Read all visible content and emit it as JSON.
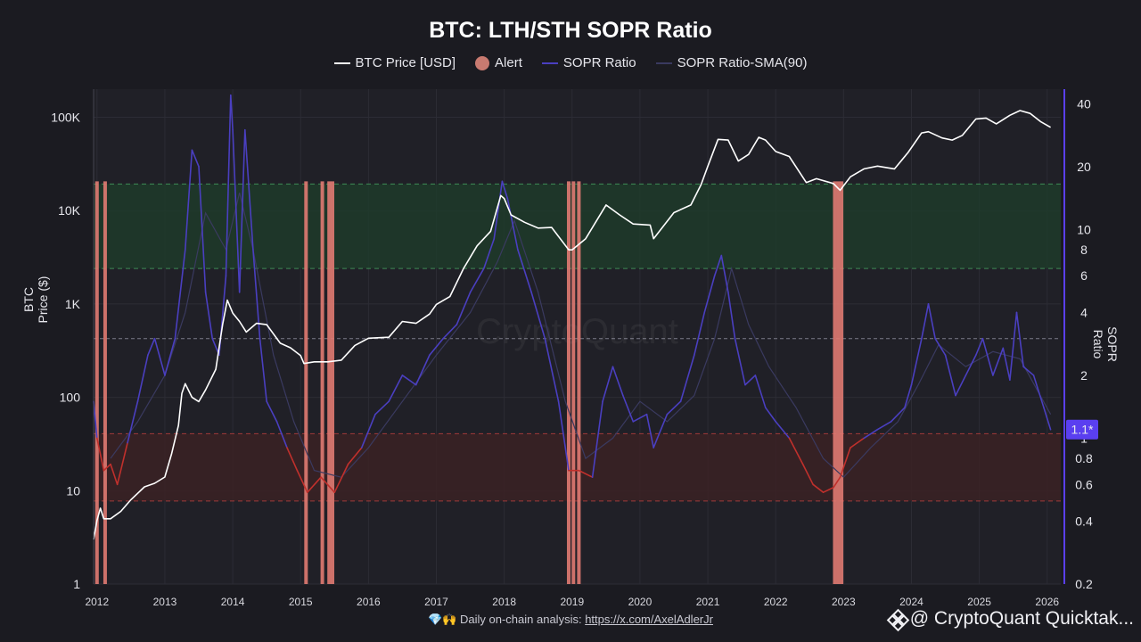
{
  "title": "BTC: LTH/STH SOPR Ratio",
  "legend": [
    {
      "label": "BTC Price [USD]",
      "color": "#ffffff",
      "kind": "line"
    },
    {
      "label": "Alert",
      "color": "#c87a70",
      "kind": "dot"
    },
    {
      "label": "SOPR Ratio",
      "color": "#4a3fc0",
      "kind": "line"
    },
    {
      "label": "SOPR Ratio-SMA(90)",
      "color": "#3a3a60",
      "kind": "line"
    }
  ],
  "left_axis_label": "BTC Price ($)",
  "right_axis_label": "SOPR Ratio",
  "current_value_badge": "1.1*",
  "footer": {
    "text": "💎🙌 Daily on-chain analysis: ",
    "link": "https://x.com/AxelAdlerJr"
  },
  "brand": "@ CryptoQuant Quicktak...",
  "watermark": "CryptoQuant",
  "colors": {
    "background": "#1b1b21",
    "plot_bg": "#202027",
    "btc_price": "#ffffff",
    "sopr_ratio": "#4a3fc0",
    "sopr_ratio_low": "#c0302c",
    "sma": "#3a3a60",
    "alert": "#e07a72",
    "green_zone": "#1f3b2a",
    "red_zone": "#3b2225",
    "badge": "#5a3ff0"
  },
  "chart_data": {
    "type": "line",
    "title": "BTC: LTH/STH SOPR Ratio",
    "x_ticks": [
      "2012",
      "2013",
      "2014",
      "2015",
      "2016",
      "2017",
      "2018",
      "2019",
      "2020",
      "2021",
      "2022",
      "2023",
      "2024",
      "2025",
      "2026"
    ],
    "xlim": [
      2011.95,
      2026.2
    ],
    "left_axis": {
      "label": "BTC Price ($)",
      "scale": "log",
      "ylim": [
        1,
        200000
      ],
      "ticks": [
        "1",
        "10",
        "100",
        "1K",
        "10K",
        "100K"
      ]
    },
    "right_axis": {
      "label": "SOPR Ratio",
      "scale": "log",
      "ylim": [
        0.2,
        47
      ],
      "ticks": [
        "0.2",
        "0.4",
        "0.6",
        "0.8",
        "1",
        "2",
        "4",
        "6",
        "8",
        "10",
        "20",
        "40"
      ]
    },
    "zones": [
      {
        "name": "high",
        "axis": "right",
        "from": 6.5,
        "to": 16.5,
        "color": "green"
      },
      {
        "name": "low",
        "axis": "right",
        "from": 0.5,
        "to": 1.05,
        "color": "red"
      },
      {
        "name": "mid-line",
        "axis": "right",
        "value": 3.0
      }
    ],
    "series": [
      {
        "name": "BTC Price [USD]",
        "axis": "left",
        "x": [
          2011.95,
          2012.0,
          2012.05,
          2012.1,
          2012.2,
          2012.35,
          2012.5,
          2012.7,
          2012.85,
          2013.0,
          2013.1,
          2013.2,
          2013.25,
          2013.3,
          2013.4,
          2013.5,
          2013.6,
          2013.75,
          2013.85,
          2013.92,
          2014.0,
          2014.1,
          2014.2,
          2014.35,
          2014.5,
          2014.7,
          2014.85,
          2015.0,
          2015.05,
          2015.2,
          2015.4,
          2015.6,
          2015.8,
          2016.0,
          2016.3,
          2016.5,
          2016.7,
          2016.9,
          2017.0,
          2017.2,
          2017.4,
          2017.6,
          2017.8,
          2017.95,
          2018.0,
          2018.1,
          2018.3,
          2018.5,
          2018.7,
          2018.95,
          2019.0,
          2019.2,
          2019.5,
          2019.7,
          2019.9,
          2020.15,
          2020.2,
          2020.5,
          2020.75,
          2020.9,
          2021.0,
          2021.15,
          2021.3,
          2021.45,
          2021.6,
          2021.75,
          2021.85,
          2022.0,
          2022.2,
          2022.45,
          2022.6,
          2022.85,
          2022.95,
          2023.1,
          2023.3,
          2023.5,
          2023.75,
          2023.95,
          2024.15,
          2024.25,
          2024.45,
          2024.6,
          2024.75,
          2024.95,
          2025.1,
          2025.25,
          2025.45,
          2025.6,
          2025.75,
          2025.9,
          2026.05
        ],
        "values": [
          3,
          4.8,
          6.5,
          5,
          5,
          6,
          8,
          11,
          12,
          14,
          25,
          50,
          110,
          140,
          100,
          90,
          120,
          200,
          600,
          1100,
          800,
          650,
          500,
          620,
          600,
          380,
          340,
          280,
          230,
          240,
          240,
          250,
          360,
          430,
          440,
          650,
          620,
          780,
          990,
          1200,
          2400,
          4200,
          6000,
          14500,
          13500,
          9000,
          7500,
          6500,
          6600,
          3800,
          3800,
          5000,
          11500,
          9000,
          7200,
          7000,
          5000,
          9500,
          11500,
          19000,
          30000,
          58000,
          57000,
          34000,
          40000,
          61000,
          57000,
          43000,
          38000,
          20000,
          22000,
          19500,
          16500,
          23000,
          28000,
          30000,
          28000,
          42000,
          68000,
          70000,
          60000,
          57000,
          64000,
          96000,
          98000,
          85000,
          105000,
          118000,
          110000,
          90000,
          78000
        ]
      },
      {
        "name": "SOPR Ratio",
        "axis": "right",
        "x": [
          2011.95,
          2012.0,
          2012.1,
          2012.2,
          2012.3,
          2012.45,
          2012.6,
          2012.75,
          2012.85,
          2013.0,
          2013.15,
          2013.3,
          2013.4,
          2013.5,
          2013.6,
          2013.7,
          2013.8,
          2013.9,
          2013.97,
          2014.0,
          2014.1,
          2014.18,
          2014.3,
          2014.4,
          2014.5,
          2014.65,
          2014.8,
          2014.95,
          2015.1,
          2015.3,
          2015.5,
          2015.7,
          2015.9,
          2016.1,
          2016.3,
          2016.5,
          2016.7,
          2016.9,
          2017.1,
          2017.3,
          2017.5,
          2017.7,
          2017.85,
          2017.97,
          2018.05,
          2018.2,
          2018.4,
          2018.6,
          2018.8,
          2018.95,
          2019.1,
          2019.3,
          2019.45,
          2019.6,
          2019.75,
          2019.9,
          2020.1,
          2020.2,
          2020.4,
          2020.6,
          2020.8,
          2020.95,
          2021.1,
          2021.2,
          2021.3,
          2021.4,
          2021.55,
          2021.7,
          2021.85,
          2022.0,
          2022.2,
          2022.4,
          2022.55,
          2022.7,
          2022.85,
          2022.95,
          2023.1,
          2023.3,
          2023.5,
          2023.7,
          2023.9,
          2024.0,
          2024.15,
          2024.25,
          2024.35,
          2024.5,
          2024.65,
          2024.8,
          2024.95,
          2025.05,
          2025.2,
          2025.35,
          2025.45,
          2025.55,
          2025.65,
          2025.8,
          2025.95,
          2026.05
        ],
        "values": [
          1.5,
          1.0,
          0.7,
          0.75,
          0.6,
          0.95,
          1.5,
          2.5,
          3.0,
          2.0,
          3.0,
          8.0,
          24.0,
          20.0,
          5.0,
          3.0,
          2.5,
          6.0,
          44.0,
          30.0,
          5.0,
          30.0,
          8.0,
          3.0,
          1.5,
          1.2,
          0.9,
          0.7,
          0.55,
          0.65,
          0.55,
          0.75,
          0.9,
          1.3,
          1.5,
          2.0,
          1.8,
          2.5,
          3.0,
          3.5,
          5.0,
          6.5,
          9.0,
          17.0,
          14.0,
          8.0,
          5.0,
          3.0,
          1.5,
          0.7,
          0.7,
          0.65,
          1.5,
          2.2,
          1.6,
          1.2,
          1.3,
          0.9,
          1.3,
          1.5,
          2.5,
          4.0,
          6.0,
          7.5,
          5.0,
          3.0,
          1.8,
          2.0,
          1.4,
          1.2,
          1.0,
          0.75,
          0.6,
          0.55,
          0.58,
          0.65,
          0.9,
          1.0,
          1.1,
          1.2,
          1.4,
          1.8,
          3.0,
          4.4,
          3.0,
          2.5,
          1.6,
          2.0,
          2.5,
          3.0,
          2.0,
          2.7,
          1.9,
          4.0,
          2.2,
          2.0,
          1.4,
          1.1
        ]
      },
      {
        "name": "SOPR Ratio-SMA(90)",
        "axis": "right",
        "x": [
          2012.2,
          2012.6,
          2013.0,
          2013.3,
          2013.6,
          2013.9,
          2014.1,
          2014.3,
          2014.6,
          2014.9,
          2015.2,
          2015.6,
          2016.0,
          2016.5,
          2017.0,
          2017.5,
          2017.9,
          2018.15,
          2018.5,
          2018.9,
          2019.2,
          2019.6,
          2020.0,
          2020.4,
          2020.8,
          2021.1,
          2021.35,
          2021.6,
          2021.9,
          2022.3,
          2022.7,
          2023.0,
          2023.4,
          2023.8,
          2024.1,
          2024.4,
          2024.8,
          2025.2,
          2025.6,
          2026.05
        ],
        "values": [
          0.8,
          1.2,
          2.0,
          4.0,
          12.0,
          8.0,
          15.0,
          8.0,
          2.5,
          1.2,
          0.7,
          0.65,
          0.9,
          1.5,
          2.5,
          4.0,
          7.0,
          11.0,
          5.0,
          1.5,
          0.8,
          1.0,
          1.5,
          1.2,
          1.6,
          3.0,
          6.5,
          3.5,
          2.2,
          1.4,
          0.8,
          0.65,
          0.9,
          1.2,
          1.8,
          2.8,
          2.2,
          2.6,
          2.4,
          1.3
        ]
      }
    ],
    "alerts": [
      2012.0,
      2012.12,
      2015.08,
      2015.32,
      2015.42,
      2015.47,
      2018.95,
      2019.02,
      2019.1,
      2022.87,
      2022.92,
      2022.97
    ]
  }
}
